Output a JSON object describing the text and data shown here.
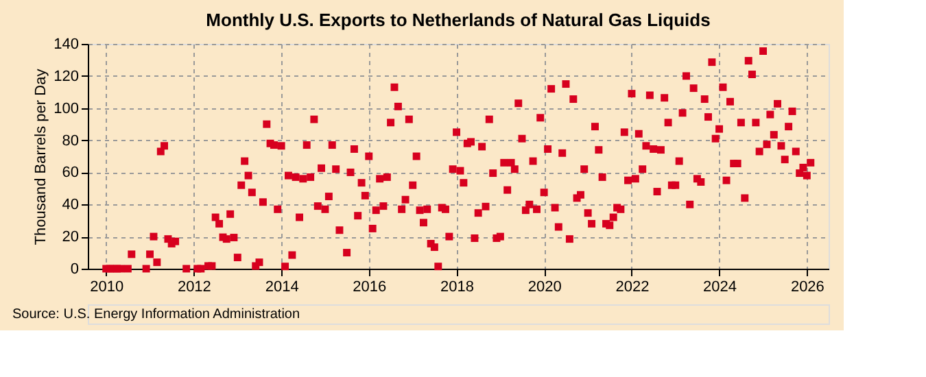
{
  "chart_data": {
    "type": "scatter",
    "title": "Monthly U.S. Exports to Netherlands of Natural Gas Liquids",
    "ylabel": "Thousand Barrels per Day",
    "annotations": [
      "Source: U.S. Energy Information Administration"
    ],
    "xlim": [
      "2009-08",
      "2026-07"
    ],
    "xticks": [
      "2010",
      "2012",
      "2014",
      "2016",
      "2018",
      "2020",
      "2022",
      "2024",
      "2026"
    ],
    "ylim": [
      0,
      140
    ],
    "yticks": [
      0,
      20,
      40,
      60,
      80,
      100,
      120,
      140
    ],
    "grid": true,
    "marker": "square",
    "series": [
      {
        "color": "#d7001e",
        "x": [
          "2010-01",
          "2010-02",
          "2010-03",
          "2010-04",
          "2010-05",
          "2010-07",
          "2010-08",
          "2010-12",
          "2011-01",
          "2011-02",
          "2011-03",
          "2011-04",
          "2011-05",
          "2011-06",
          "2011-07",
          "2011-08",
          "2011-11",
          "2012-02",
          "2012-03",
          "2012-05",
          "2012-06",
          "2012-07",
          "2012-08",
          "2012-09",
          "2012-10",
          "2012-11",
          "2012-12",
          "2013-01",
          "2013-02",
          "2013-03",
          "2013-04",
          "2013-05",
          "2013-06",
          "2013-07",
          "2013-08",
          "2013-09",
          "2013-10",
          "2013-11",
          "2013-12",
          "2014-01",
          "2014-02",
          "2014-03",
          "2014-04",
          "2014-05",
          "2014-06",
          "2014-07",
          "2014-08",
          "2014-09",
          "2014-10",
          "2014-11",
          "2014-12",
          "2015-01",
          "2015-02",
          "2015-03",
          "2015-04",
          "2015-05",
          "2015-07",
          "2015-08",
          "2015-09",
          "2015-10",
          "2015-11",
          "2015-12",
          "2016-01",
          "2016-02",
          "2016-03",
          "2016-04",
          "2016-05",
          "2016-06",
          "2016-07",
          "2016-08",
          "2016-09",
          "2016-10",
          "2016-11",
          "2016-12",
          "2017-01",
          "2017-02",
          "2017-03",
          "2017-04",
          "2017-05",
          "2017-06",
          "2017-07",
          "2017-08",
          "2017-09",
          "2017-10",
          "2017-11",
          "2017-12",
          "2018-01",
          "2018-02",
          "2018-03",
          "2018-04",
          "2018-05",
          "2018-06",
          "2018-07",
          "2018-08",
          "2018-09",
          "2018-10",
          "2018-11",
          "2018-12",
          "2019-01",
          "2019-02",
          "2019-03",
          "2019-04",
          "2019-05",
          "2019-06",
          "2019-07",
          "2019-08",
          "2019-09",
          "2019-10",
          "2019-11",
          "2019-12",
          "2020-01",
          "2020-02",
          "2020-03",
          "2020-04",
          "2020-05",
          "2020-06",
          "2020-07",
          "2020-08",
          "2020-09",
          "2020-10",
          "2020-11",
          "2020-12",
          "2021-01",
          "2021-02",
          "2021-03",
          "2021-04",
          "2021-05",
          "2021-06",
          "2021-07",
          "2021-08",
          "2021-09",
          "2021-10",
          "2021-11",
          "2021-12",
          "2022-01",
          "2022-02",
          "2022-03",
          "2022-04",
          "2022-05",
          "2022-06",
          "2022-07",
          "2022-08",
          "2022-09",
          "2022-10",
          "2022-11",
          "2022-12",
          "2023-01",
          "2023-02",
          "2023-03",
          "2023-04",
          "2023-05",
          "2023-06",
          "2023-07",
          "2023-08",
          "2023-09",
          "2023-10",
          "2023-11",
          "2023-12",
          "2024-01",
          "2024-02",
          "2024-03",
          "2024-04",
          "2024-05",
          "2024-06",
          "2024-07",
          "2024-08",
          "2024-09",
          "2024-10",
          "2024-11",
          "2024-12",
          "2025-01",
          "2025-02",
          "2025-03",
          "2025-04",
          "2025-05",
          "2025-06",
          "2025-07",
          "2025-08",
          "2025-09",
          "2025-10",
          "2025-11",
          "2025-12",
          "2026-01",
          "2026-02"
        ],
        "values": [
          0,
          0,
          0,
          0,
          0,
          0,
          9,
          0,
          9,
          20,
          4,
          73,
          76.5,
          18.5,
          15.6,
          17,
          0,
          0,
          0,
          1.7,
          1.7,
          32,
          28,
          19.6,
          18.5,
          34,
          19.4,
          7,
          52,
          67,
          58,
          47.5,
          1.7,
          4,
          41.5,
          90,
          78,
          77,
          37,
          76.5,
          1.4,
          58,
          8.5,
          57,
          32,
          56,
          77,
          57,
          93,
          39,
          62.6,
          37,
          45,
          77,
          62,
          24,
          10,
          60,
          74.5,
          33,
          53.5,
          45.5,
          70,
          25,
          36.4,
          56,
          39,
          57,
          91,
          113,
          101,
          37,
          43,
          93,
          52,
          70,
          36.4,
          28.7,
          37,
          15.6,
          13.4,
          1.4,
          38,
          37,
          20,
          62,
          85,
          61,
          53.5,
          78,
          79,
          19,
          34.7,
          76,
          38.7,
          93,
          59.5,
          19,
          20,
          66,
          49,
          66,
          62,
          103,
          81,
          36.4,
          40,
          67,
          37,
          94,
          47.5,
          74.5,
          112,
          38,
          26,
          72,
          115,
          18.5,
          105.6,
          44,
          46,
          62,
          34.7,
          28,
          88.5,
          74,
          57,
          28,
          27,
          32,
          38,
          37,
          85,
          55,
          109,
          56,
          84,
          62,
          76.5,
          108,
          74.5,
          48,
          74,
          106.4,
          91,
          52,
          52,
          67,
          97,
          120,
          40,
          112.4,
          56,
          54,
          105.6,
          94.5,
          128.6,
          81,
          87,
          113,
          55,
          104,
          65.5,
          65.5,
          91,
          44,
          129.5,
          121,
          91,
          73,
          135.5,
          77.4,
          96,
          83.4,
          102.7,
          76.5,
          68,
          88.5,
          98,
          73,
          59.5,
          63,
          58,
          66
        ]
      }
    ]
  }
}
